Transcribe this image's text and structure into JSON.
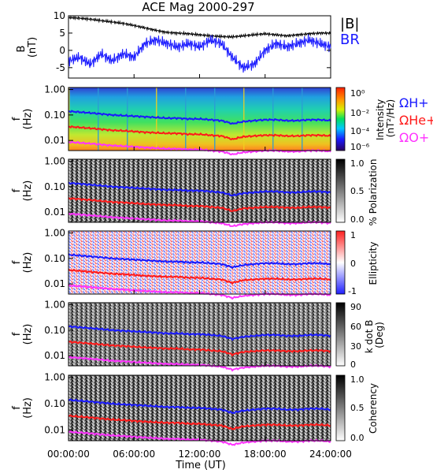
{
  "title": "ACE Mag 2000-297",
  "colors": {
    "bmag": "#000000",
    "br": "#1a1aff",
    "h_plus": "#1a1aff",
    "he_plus": "#ff1a1a",
    "o_plus": "#ff33ff"
  },
  "chart_data": [
    {
      "type": "line",
      "panel": "magnetic field",
      "ylabel": "B\n(nT)",
      "ylim": [
        -8,
        10
      ],
      "yticks": [
        "10",
        "5",
        "0",
        "-5"
      ],
      "xlim": [
        0,
        24
      ],
      "legend": [
        "|B|",
        "BR"
      ],
      "series": [
        {
          "name": "|B|",
          "color": "#000000",
          "x": [
            0,
            1,
            2,
            3,
            4,
            5,
            6,
            7,
            8,
            9,
            10,
            11,
            12,
            13,
            14,
            15,
            16,
            17,
            18,
            19,
            20,
            21,
            22,
            23,
            24
          ],
          "y": [
            9.5,
            9.3,
            9,
            8.6,
            8.2,
            7.8,
            7.2,
            6.5,
            5.8,
            5.2,
            5,
            4.8,
            4.5,
            4.2,
            4,
            3.9,
            4.2,
            4.5,
            4.8,
            4.5,
            4.2,
            4.5,
            4.8,
            5,
            5
          ]
        },
        {
          "name": "BR",
          "color": "#1a1aff",
          "x": [
            0,
            1,
            2,
            3,
            4,
            5,
            6,
            7,
            8,
            9,
            10,
            11,
            12,
            13,
            14,
            15,
            16,
            17,
            18,
            19,
            20,
            21,
            22,
            23,
            24
          ],
          "y": [
            -3,
            -2,
            -4,
            -1,
            -3,
            -1,
            -2,
            2,
            3,
            2,
            1,
            2,
            1,
            3,
            2,
            -2,
            -5,
            -4,
            0,
            2,
            1,
            2,
            3,
            2,
            1
          ]
        }
      ]
    },
    {
      "type": "heatmap",
      "panel": "intensity spectrogram",
      "ylabel": "f\n(Hz)",
      "yticks": [
        "1.00",
        "0.10",
        "0.01"
      ],
      "colorbar": {
        "label": "Intensity\n(nT²/Hz)",
        "ticks": [
          "10⁰",
          "10⁻²",
          "10⁻⁴",
          "10⁻⁶"
        ]
      },
      "legend": [
        "ΩH+",
        "ΩHe+",
        "ΩO+"
      ]
    },
    {
      "type": "heatmap",
      "panel": "polarization",
      "ylabel": "f\n(Hz)",
      "yticks": [
        "1.00",
        "0.10",
        "0.01"
      ],
      "colorbar": {
        "label": "% Polarization",
        "ticks": [
          "1.0",
          "0.5",
          "0.0"
        ]
      }
    },
    {
      "type": "heatmap",
      "panel": "ellipticity",
      "ylabel": "f\n(Hz)",
      "yticks": [
        "1.00",
        "0.10",
        "0.01"
      ],
      "colorbar": {
        "label": "Ellipticity",
        "ticks": [
          "1",
          "0",
          "-1"
        ]
      }
    },
    {
      "type": "heatmap",
      "panel": "k dot B",
      "ylabel": "f\n(Hz)",
      "yticks": [
        "1.00",
        "0.10",
        "0.01"
      ],
      "colorbar": {
        "label": "k dot B\n(Deg)",
        "ticks": [
          "90",
          "60",
          "30",
          "0"
        ]
      }
    },
    {
      "type": "heatmap",
      "panel": "coherency",
      "ylabel": "f\n(Hz)",
      "yticks": [
        "1.00",
        "0.10",
        "0.01"
      ],
      "colorbar": {
        "label": "Coherency",
        "ticks": [
          "1.0",
          "0.5",
          "0.0"
        ]
      }
    }
  ],
  "gyro_lines": {
    "x": [
      0,
      1,
      2,
      3,
      4,
      5,
      6,
      7,
      8,
      9,
      10,
      11,
      12,
      13,
      14,
      15,
      16,
      17,
      18,
      19,
      20,
      21,
      22,
      23,
      24
    ],
    "h_plus_hz": [
      0.14,
      0.13,
      0.12,
      0.11,
      0.1,
      0.095,
      0.09,
      0.085,
      0.08,
      0.075,
      0.075,
      0.07,
      0.07,
      0.065,
      0.06,
      0.045,
      0.055,
      0.06,
      0.065,
      0.065,
      0.06,
      0.06,
      0.065,
      0.065,
      0.06
    ],
    "he_plus_hz": [
      0.035,
      0.0325,
      0.03,
      0.0275,
      0.025,
      0.024,
      0.0225,
      0.021,
      0.02,
      0.019,
      0.019,
      0.0175,
      0.0175,
      0.016,
      0.015,
      0.011,
      0.014,
      0.015,
      0.016,
      0.016,
      0.015,
      0.015,
      0.016,
      0.016,
      0.015
    ],
    "o_plus_hz": [
      0.0087,
      0.0081,
      0.0075,
      0.0069,
      0.0063,
      0.006,
      0.0056,
      0.0053,
      0.005,
      0.0047,
      0.0047,
      0.0044,
      0.0044,
      0.004,
      0.0037,
      0.0028,
      0.0034,
      0.0037,
      0.004,
      0.004,
      0.0037,
      0.0037,
      0.004,
      0.004,
      0.0037
    ]
  },
  "xaxis": {
    "label": "Time (UT)",
    "ticks": [
      "00:00:00",
      "06:00:00",
      "12:00:00",
      "18:00:00",
      "24:00:00"
    ]
  }
}
